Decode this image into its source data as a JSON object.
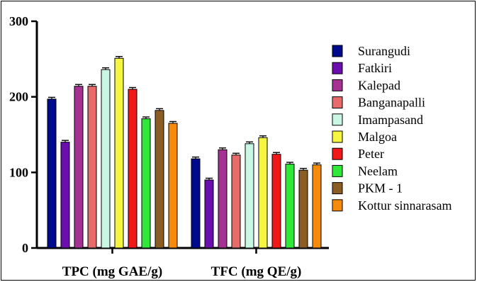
{
  "chart_data": {
    "type": "bar",
    "categories": [
      "TPC (mg GAE/g)",
      "TFC (mg QE/g)"
    ],
    "ylim": [
      0,
      300
    ],
    "yticks": [
      0,
      100,
      200,
      300
    ],
    "legend_position": "right",
    "grid": false,
    "error_bars": true,
    "series": [
      {
        "name": "Surangudi",
        "color": "#000a8c",
        "values": [
          197,
          118
        ]
      },
      {
        "name": "Fatkiri",
        "color": "#6a0fae",
        "values": [
          140,
          90
        ]
      },
      {
        "name": "Kalepad",
        "color": "#a53193",
        "values": [
          214,
          130
        ]
      },
      {
        "name": "Banganapalli",
        "color": "#e76b6b",
        "values": [
          214,
          123
        ]
      },
      {
        "name": "Imampasand",
        "color": "#c9f7e4",
        "values": [
          236,
          138
        ]
      },
      {
        "name": "Malgoa",
        "color": "#f5f542",
        "values": [
          251,
          146
        ]
      },
      {
        "name": "Peter",
        "color": "#f01818",
        "values": [
          210,
          124
        ]
      },
      {
        "name": "Neelam",
        "color": "#2fe83a",
        "values": [
          171,
          111
        ]
      },
      {
        "name": "PKM - 1",
        "color": "#8c5d22",
        "values": [
          182,
          103
        ]
      },
      {
        "name": "Kottur sinnarasam",
        "color": "#f58a0c",
        "values": [
          165,
          110
        ]
      }
    ]
  }
}
